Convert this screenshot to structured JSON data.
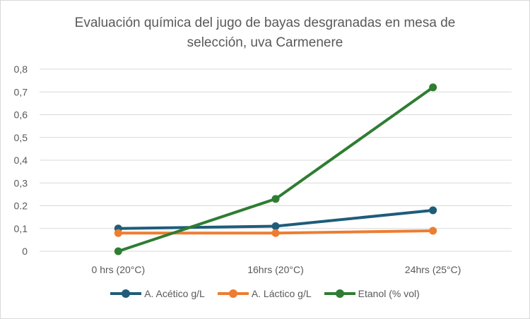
{
  "chart_data": {
    "type": "line",
    "title_lines": [
      "Evaluación química del jugo de bayas desgranadas en mesa de",
      "selección, uva Carmenere"
    ],
    "categories": [
      "0 hrs (20°C)",
      "16hrs (20°C)",
      "24hrs (25°C)"
    ],
    "ylim": [
      0,
      0.8
    ],
    "y_ticks": [
      "0",
      "0,1",
      "0.2",
      "0,3",
      "0,4",
      "0,5",
      "0,6",
      "0,7",
      "0,8"
    ],
    "grid": true,
    "legend_position": "bottom",
    "series": [
      {
        "name": "A. Acético g/L",
        "color": "#1f5c7a",
        "values": [
          0.1,
          0.11,
          0.18
        ]
      },
      {
        "name": "A. Láctico g/L",
        "color": "#ed7d31",
        "values": [
          0.08,
          0.08,
          0.09
        ]
      },
      {
        "name": "Etanol (% vol)",
        "color": "#2e7d32",
        "values": [
          0.0,
          0.23,
          0.72
        ]
      }
    ]
  }
}
